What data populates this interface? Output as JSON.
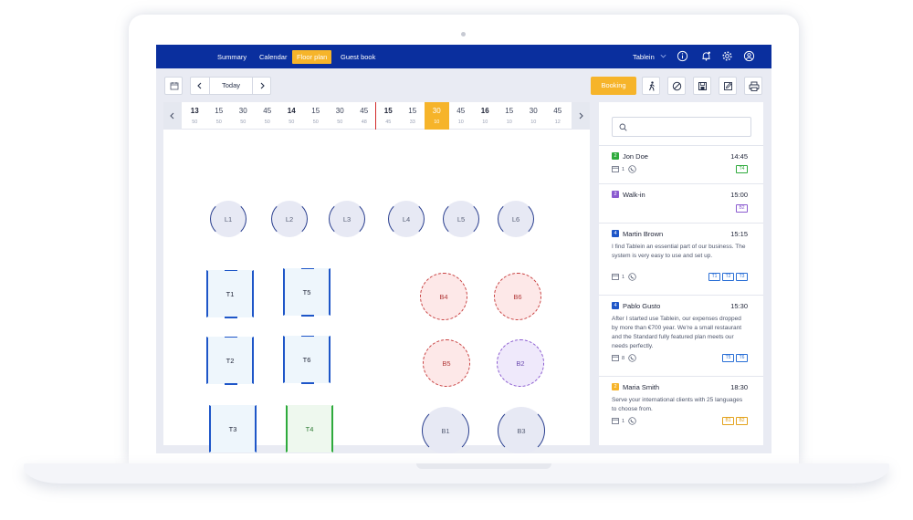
{
  "nav": {
    "items": [
      {
        "label": "Summary",
        "active": false
      },
      {
        "label": "Calendar",
        "active": false
      },
      {
        "label": "Floor plan",
        "active": true
      },
      {
        "label": "Guest book",
        "active": false
      }
    ],
    "user": "Tablein",
    "icons": [
      "chevron-down-icon",
      "info-icon",
      "bell-icon",
      "gear-icon",
      "user-icon"
    ]
  },
  "toolbar": {
    "today_label": "Today",
    "booking_label": "Booking",
    "icons": [
      "calendar-icon",
      "chevron-left-icon",
      "chevron-right-icon",
      "walk-in-icon",
      "block-icon",
      "save-icon",
      "edit-icon",
      "print-icon"
    ]
  },
  "timeline": [
    {
      "time": "13",
      "count": "50",
      "hour": true
    },
    {
      "time": "15",
      "count": "50"
    },
    {
      "time": "30",
      "count": "50"
    },
    {
      "time": "45",
      "count": "50"
    },
    {
      "time": "14",
      "count": "50",
      "hour": true
    },
    {
      "time": "15",
      "count": "50"
    },
    {
      "time": "30",
      "count": "50"
    },
    {
      "time": "45",
      "count": "48"
    },
    {
      "time": "15",
      "count": "45",
      "hour": true
    },
    {
      "time": "15",
      "count": "33"
    },
    {
      "time": "30",
      "count": "10",
      "current": true
    },
    {
      "time": "45",
      "count": "10"
    },
    {
      "time": "16",
      "count": "10",
      "hour": true
    },
    {
      "time": "15",
      "count": "10"
    },
    {
      "time": "30",
      "count": "10"
    },
    {
      "time": "45",
      "count": "12"
    }
  ],
  "tables": [
    {
      "label": "L1",
      "state": "free-round"
    },
    {
      "label": "L2",
      "state": "free-round"
    },
    {
      "label": "L3",
      "state": "free-round"
    },
    {
      "label": "L4",
      "state": "free-round"
    },
    {
      "label": "L5",
      "state": "free-round"
    },
    {
      "label": "L6",
      "state": "free-round"
    },
    {
      "label": "T1",
      "state": "square"
    },
    {
      "label": "T5",
      "state": "square"
    },
    {
      "label": "T2",
      "state": "square"
    },
    {
      "label": "T6",
      "state": "square"
    },
    {
      "label": "T3",
      "state": "square"
    },
    {
      "label": "T4",
      "state": "square-green"
    },
    {
      "label": "B4",
      "state": "booked-red"
    },
    {
      "label": "B6",
      "state": "booked-red"
    },
    {
      "label": "B5",
      "state": "booked-red"
    },
    {
      "label": "B2",
      "state": "booked-purple"
    },
    {
      "label": "B1",
      "state": "free-round"
    },
    {
      "label": "B3",
      "state": "free-round"
    }
  ],
  "reservations": [
    {
      "badge": "2",
      "badge_color": "#2eaa3c",
      "name": "Jon Doe",
      "time": "14:45",
      "note": "",
      "guests": "1",
      "tags": [
        "T4"
      ],
      "tag_color": "#2eaa3c"
    },
    {
      "badge": "2",
      "badge_color": "#8b5bd0",
      "name": "Walk-in",
      "time": "15:00",
      "note": "",
      "guests": "",
      "tags": [
        "B2"
      ],
      "tag_color": "#8b5bd0"
    },
    {
      "badge": "4",
      "badge_color": "#1e56c8",
      "name": "Martin Brown",
      "time": "15:15",
      "note": "I find Tablein an essential part of our business. The system is very easy to use and set up.",
      "guests": "1",
      "tags": [
        "T1",
        "T2",
        "T3"
      ],
      "tag_color": "#2a6fd6"
    },
    {
      "badge": "4",
      "badge_color": "#1e56c8",
      "name": "Pablo Gusto",
      "time": "15:30",
      "note": "After I started use Tablein, our expenses dropped by more than €700 year. We're a small restaurant and the Standard fully featured plan meets our needs perfectly.",
      "guests": "8",
      "tags": [
        "T5",
        "T6"
      ],
      "tag_color": "#2a6fd6"
    },
    {
      "badge": "2",
      "badge_color": "#f6b42a",
      "name": "Maria Smith",
      "time": "18:30",
      "note": "Serve your international clients with 25 languages to choose from.",
      "guests": "1",
      "tags": [
        "B1",
        "B2"
      ],
      "tag_color": "#e3a21c"
    }
  ],
  "colors": {
    "brand": "#0a2f9e",
    "accent": "#f6b42a",
    "now_line": "#d22a2a"
  }
}
